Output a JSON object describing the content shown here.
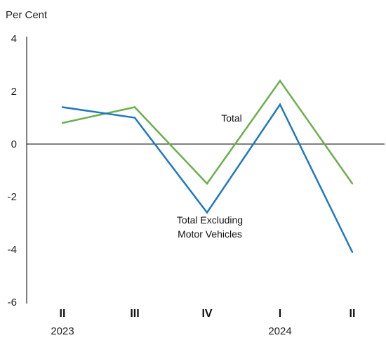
{
  "chart_data": {
    "type": "line",
    "ylabel": "Per Cent",
    "ylim": [
      -6,
      4
    ],
    "yticks": [
      4,
      2,
      0,
      -2,
      -4,
      -6
    ],
    "categories": [
      "II",
      "III",
      "IV",
      "I",
      "II"
    ],
    "years": [
      {
        "label": "2023",
        "category_index": 0
      },
      {
        "label": "2024",
        "category_index": 3
      }
    ],
    "series": [
      {
        "name": "Total",
        "color": "#6ab04c",
        "values": [
          0.8,
          1.4,
          -1.5,
          2.4,
          -1.5
        ]
      },
      {
        "name": "Total Excluding Motor Vehicles",
        "color": "#1f78c1",
        "values": [
          1.4,
          1.0,
          -2.6,
          1.5,
          -4.1
        ]
      }
    ],
    "annotations": [
      {
        "series_index": 0,
        "lines": [
          "Total"
        ]
      },
      {
        "series_index": 1,
        "lines": [
          "Total Excluding",
          "Motor Vehicles"
        ]
      }
    ],
    "zero_line": true,
    "grid": false
  }
}
